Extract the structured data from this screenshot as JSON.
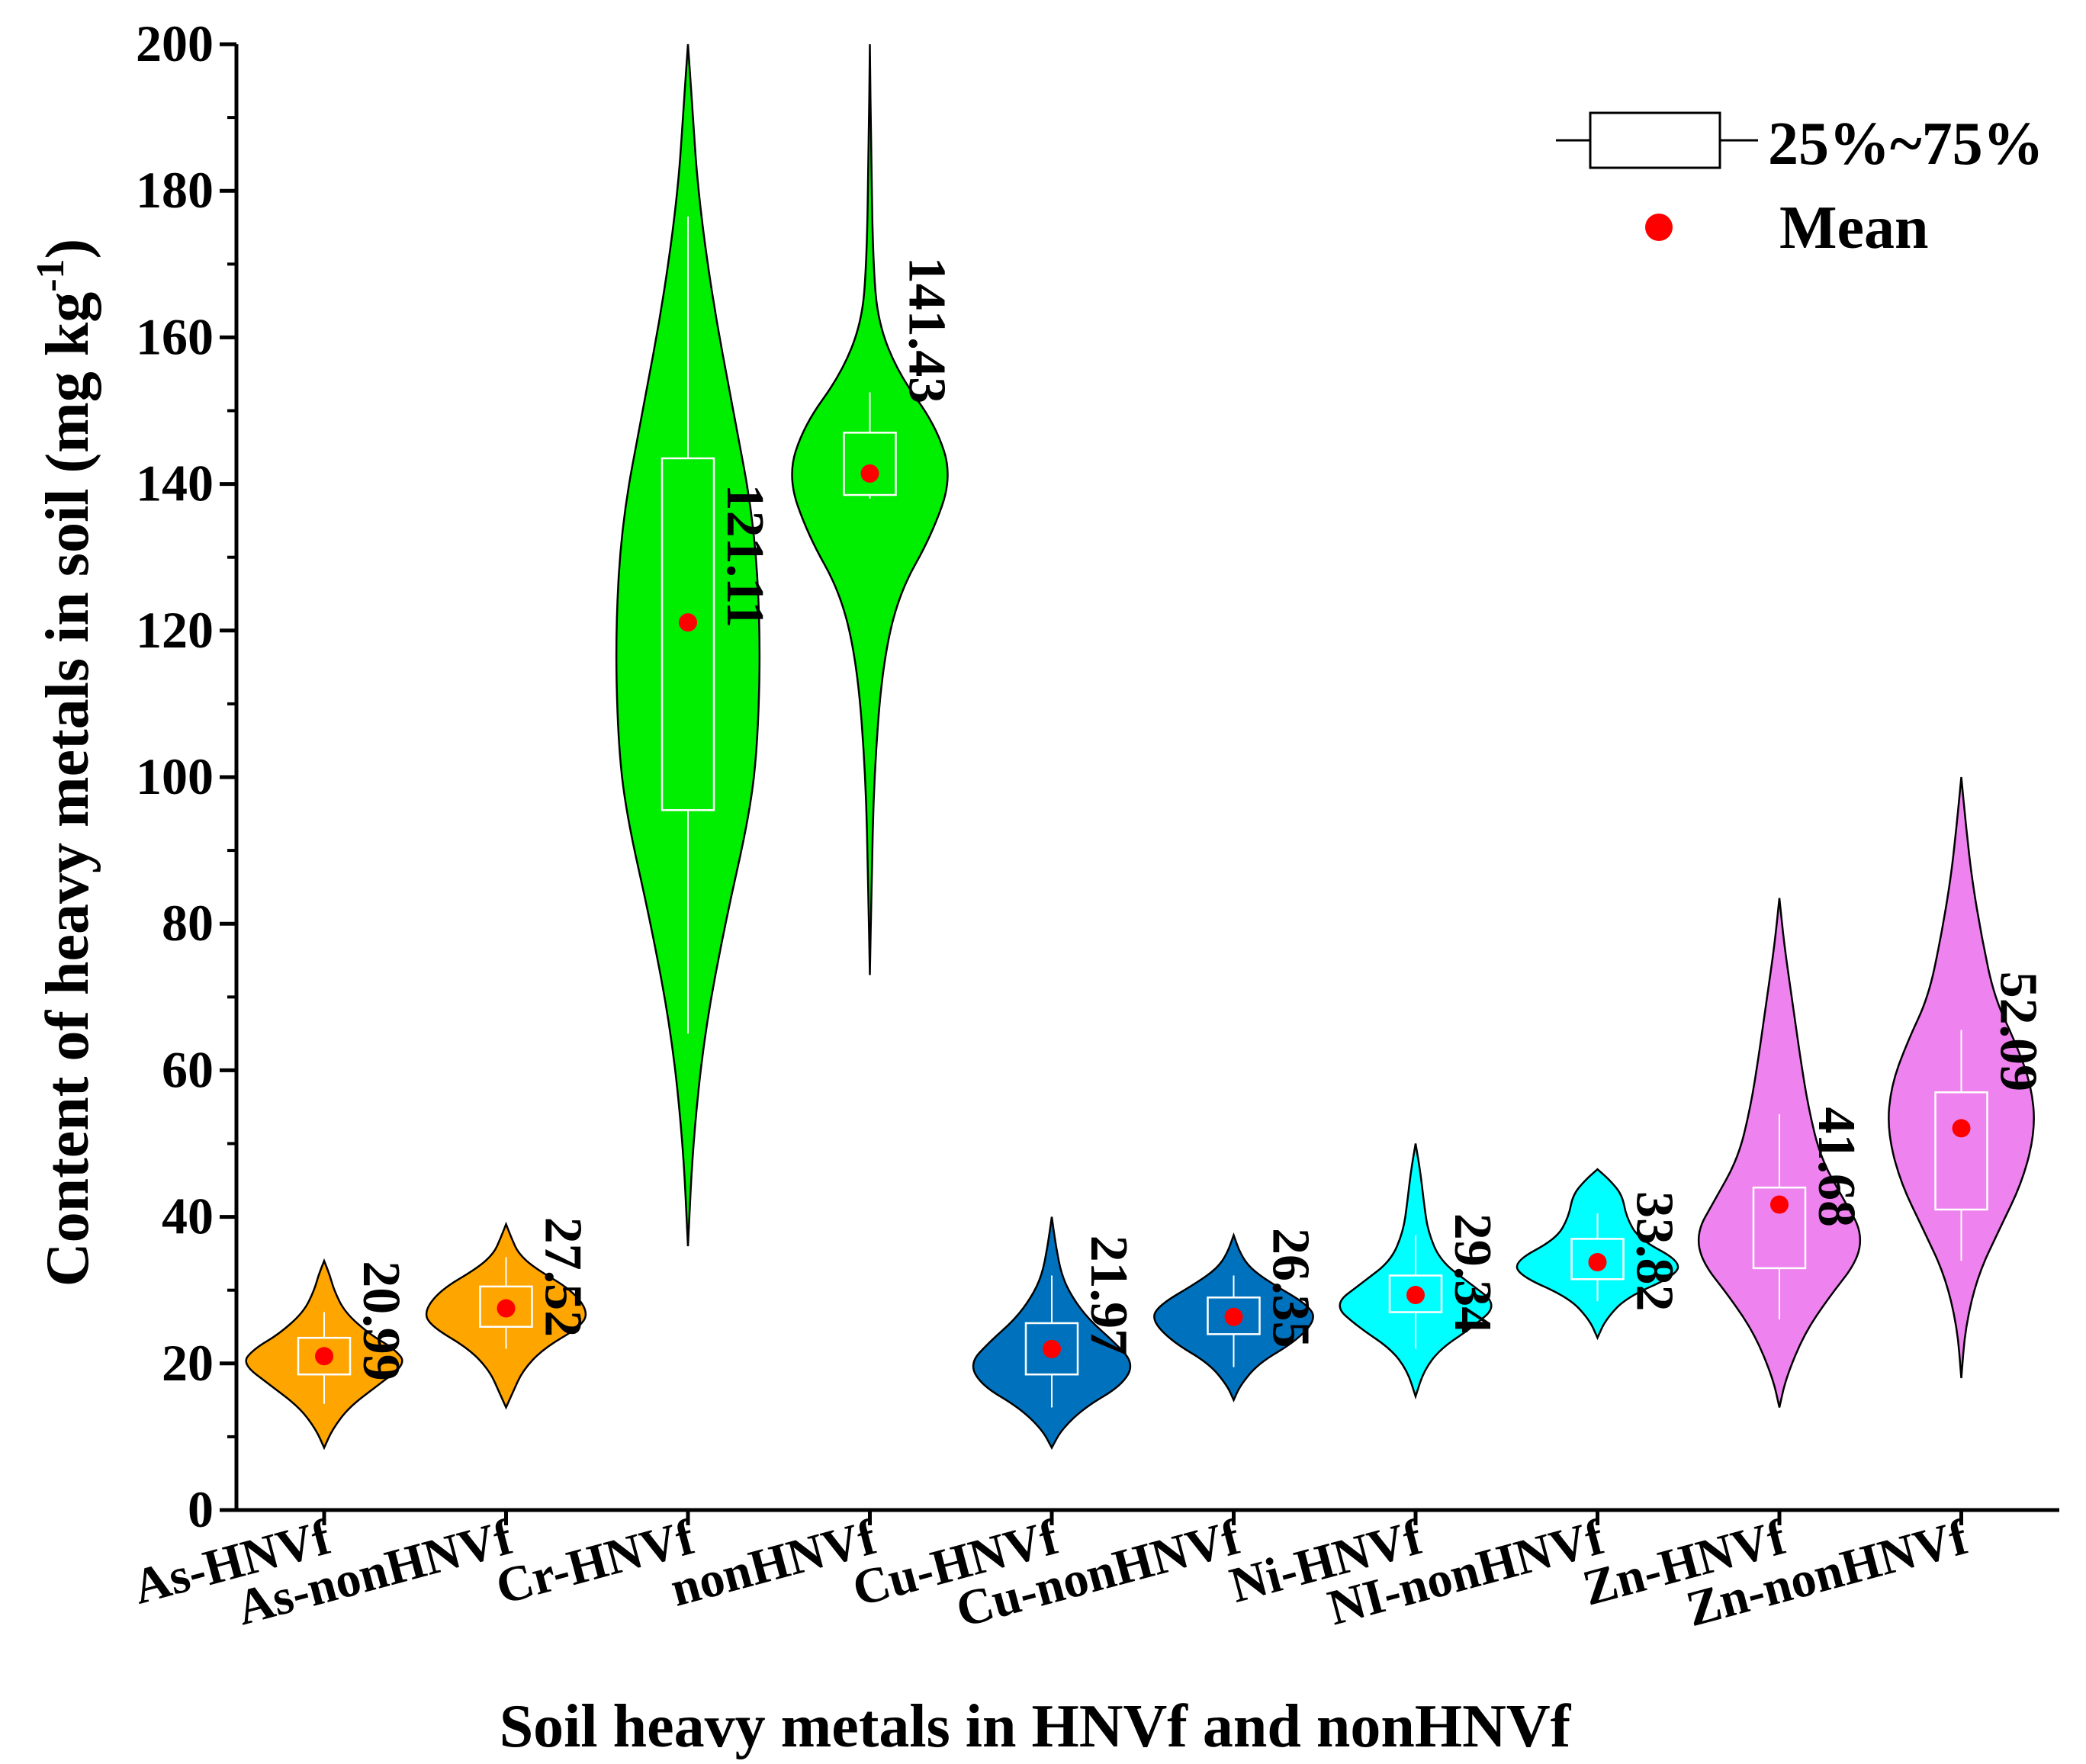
{
  "chart_data": {
    "type": "violin",
    "title": "",
    "xlabel": "Soil heavy metals in HNVf and nonHNVf",
    "ylabel_main": "Content of heavy metals in soil (mg kg",
    "ylabel_sup": "-1",
    "ylabel_close": ")",
    "ylim": [
      0,
      200
    ],
    "yticks": [
      "0",
      "20",
      "40",
      "60",
      "80",
      "100",
      "120",
      "140",
      "160",
      "180",
      "200"
    ],
    "legend": {
      "position": "top-right",
      "box_label": "25%~75%",
      "mean_label": "Mean"
    },
    "colors": {
      "As": "#FFA500",
      "Cr": "#00EE00",
      "Cu": "#0072BD",
      "Ni": "#00FFFF",
      "Zn": "#EE82EE",
      "mean": "#FF0000",
      "box": "#FFFFFF"
    },
    "series": [
      {
        "category": "As-HNVf",
        "group": "As",
        "mean": 20.99,
        "mean_label": "20.99",
        "q1": 18.5,
        "q3": 23.5,
        "whisker_low": 14.5,
        "whisker_high": 27.0,
        "min": 8.5,
        "max": 34.0,
        "density": [
          [
            8.5,
            0
          ],
          [
            11,
            0.1
          ],
          [
            14,
            0.3
          ],
          [
            17,
            0.65
          ],
          [
            20,
            1.0
          ],
          [
            22,
            0.85
          ],
          [
            24,
            0.55
          ],
          [
            27,
            0.25
          ],
          [
            30,
            0.12
          ],
          [
            32,
            0.07
          ],
          [
            34,
            0
          ]
        ]
      },
      {
        "category": "As-nonHNVf",
        "group": "As",
        "mean": 27.52,
        "mean_label": "27.52",
        "q1": 25.0,
        "q3": 30.5,
        "whisker_low": 22.0,
        "whisker_high": 34.5,
        "min": 14.0,
        "max": 39.0,
        "density": [
          [
            14,
            0
          ],
          [
            16,
            0.08
          ],
          [
            19,
            0.2
          ],
          [
            22,
            0.45
          ],
          [
            25,
            0.9
          ],
          [
            27,
            1.0
          ],
          [
            30,
            0.8
          ],
          [
            33,
            0.35
          ],
          [
            35,
            0.15
          ],
          [
            37,
            0.07
          ],
          [
            39,
            0
          ]
        ]
      },
      {
        "category": "Cr-HNVf",
        "group": "Cr",
        "mean": 121.11,
        "mean_label": "121.11",
        "q1": 95.5,
        "q3": 143.5,
        "whisker_low": 65.0,
        "whisker_high": 176.5,
        "min": 36.0,
        "max": 200.0,
        "density": [
          [
            36,
            0
          ],
          [
            50,
            0.06
          ],
          [
            65,
            0.2
          ],
          [
            80,
            0.45
          ],
          [
            95,
            0.75
          ],
          [
            105,
            0.85
          ],
          [
            120,
            0.88
          ],
          [
            135,
            0.8
          ],
          [
            150,
            0.55
          ],
          [
            165,
            0.3
          ],
          [
            180,
            0.12
          ],
          [
            192,
            0.05
          ],
          [
            200,
            0
          ]
        ]
      },
      {
        "category": "nonHNVf",
        "group": "Cr",
        "mean": 141.43,
        "mean_label": "141.43",
        "q1": 138.5,
        "q3": 147.0,
        "whisker_low": 138.0,
        "whisker_high": 152.5,
        "min": 73.0,
        "max": 200.0,
        "density": [
          [
            73,
            0
          ],
          [
            85,
            0.02
          ],
          [
            100,
            0.05
          ],
          [
            115,
            0.15
          ],
          [
            125,
            0.35
          ],
          [
            133,
            0.75
          ],
          [
            141,
            1.0
          ],
          [
            148,
            0.8
          ],
          [
            155,
            0.35
          ],
          [
            162,
            0.1
          ],
          [
            170,
            0.04
          ],
          [
            185,
            0.015
          ],
          [
            200,
            0
          ]
        ]
      },
      {
        "category": "Cu-HNVf",
        "group": "Cu",
        "mean": 21.97,
        "mean_label": "21.97",
        "q1": 18.5,
        "q3": 25.5,
        "whisker_low": 14.0,
        "whisker_high": 32.0,
        "min": 8.5,
        "max": 40.0,
        "density": [
          [
            8.5,
            0
          ],
          [
            11,
            0.12
          ],
          [
            14,
            0.4
          ],
          [
            17,
            0.85
          ],
          [
            20,
            1.0
          ],
          [
            23,
            0.75
          ],
          [
            26,
            0.45
          ],
          [
            29,
            0.25
          ],
          [
            32,
            0.12
          ],
          [
            36,
            0.05
          ],
          [
            40,
            0
          ]
        ]
      },
      {
        "category": "Cu-nonHNVf",
        "group": "Cu",
        "mean": 26.35,
        "mean_label": "26.35",
        "q1": 24.0,
        "q3": 29.0,
        "whisker_low": 19.5,
        "whisker_high": 32.0,
        "min": 15.0,
        "max": 37.5,
        "density": [
          [
            15,
            0
          ],
          [
            17,
            0.08
          ],
          [
            20,
            0.3
          ],
          [
            23,
            0.75
          ],
          [
            26,
            1.0
          ],
          [
            28,
            0.9
          ],
          [
            31,
            0.45
          ],
          [
            33,
            0.2
          ],
          [
            35,
            0.08
          ],
          [
            37.5,
            0
          ]
        ]
      },
      {
        "category": "Ni-HNVf",
        "group": "Ni",
        "mean": 29.34,
        "mean_label": "29.34",
        "q1": 27.0,
        "q3": 32.0,
        "whisker_low": 22.0,
        "whisker_high": 37.5,
        "min": 15.5,
        "max": 50.0,
        "density": [
          [
            15.5,
            0
          ],
          [
            19,
            0.1
          ],
          [
            22,
            0.3
          ],
          [
            25,
            0.7
          ],
          [
            28,
            1.0
          ],
          [
            31,
            0.65
          ],
          [
            34,
            0.3
          ],
          [
            38,
            0.15
          ],
          [
            42,
            0.1
          ],
          [
            46,
            0.06
          ],
          [
            50,
            0
          ]
        ]
      },
      {
        "category": "NI-nonHNVf",
        "group": "Ni",
        "mean": 33.82,
        "mean_label": "33.82",
        "q1": 31.5,
        "q3": 37.0,
        "whisker_low": 28.5,
        "whisker_high": 40.5,
        "min": 23.5,
        "max": 46.5,
        "density": [
          [
            23.5,
            0
          ],
          [
            26,
            0.1
          ],
          [
            29,
            0.35
          ],
          [
            32,
            0.95
          ],
          [
            34,
            1.0
          ],
          [
            37,
            0.5
          ],
          [
            40,
            0.35
          ],
          [
            43,
            0.3
          ],
          [
            45,
            0.15
          ],
          [
            46.5,
            0
          ]
        ]
      },
      {
        "category": "Zn-HNVf",
        "group": "Zn",
        "mean": 41.68,
        "mean_label": "41.68",
        "q1": 33.0,
        "q3": 44.0,
        "whisker_low": 26.0,
        "whisker_high": 54.0,
        "min": 14.0,
        "max": 83.5,
        "density": [
          [
            14,
            0
          ],
          [
            18,
            0.08
          ],
          [
            24,
            0.3
          ],
          [
            29,
            0.6
          ],
          [
            34,
            0.95
          ],
          [
            38,
            1.0
          ],
          [
            42,
            0.8
          ],
          [
            48,
            0.5
          ],
          [
            55,
            0.35
          ],
          [
            62,
            0.25
          ],
          [
            70,
            0.15
          ],
          [
            77,
            0.06
          ],
          [
            83.5,
            0
          ]
        ]
      },
      {
        "category": "Zn-nonHNVf",
        "group": "Zn",
        "mean": 52.09,
        "mean_label": "52.09",
        "q1": 41.0,
        "q3": 57.0,
        "whisker_low": 34.0,
        "whisker_high": 65.5,
        "min": 18.0,
        "max": 100.0,
        "density": [
          [
            18,
            0
          ],
          [
            25,
            0.05
          ],
          [
            32,
            0.2
          ],
          [
            38,
            0.45
          ],
          [
            45,
            0.75
          ],
          [
            52,
            0.9
          ],
          [
            58,
            0.85
          ],
          [
            64,
            0.65
          ],
          [
            70,
            0.4
          ],
          [
            78,
            0.25
          ],
          [
            86,
            0.13
          ],
          [
            93,
            0.06
          ],
          [
            100,
            0
          ]
        ]
      }
    ]
  }
}
